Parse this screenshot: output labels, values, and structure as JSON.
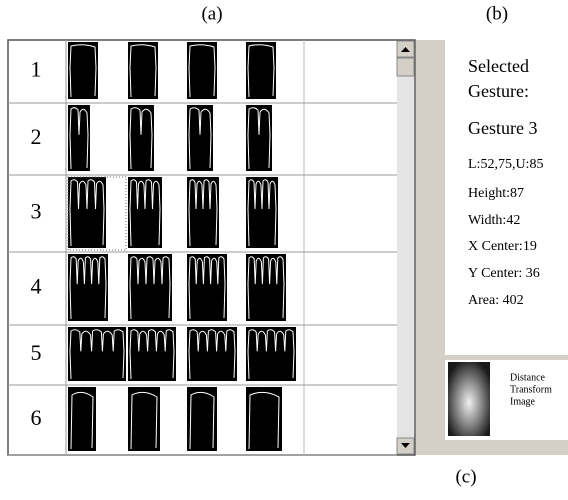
{
  "panel_labels": {
    "a": "(a)",
    "b": "(b)",
    "c": "(c)"
  },
  "gesture_table": {
    "rows": [
      "1",
      "2",
      "3",
      "4",
      "5",
      "6"
    ]
  },
  "info_panel": {
    "heading_line1": "Selected",
    "heading_line2": "Gesture:",
    "gesture_name": "Gesture 3",
    "fields": [
      "L:52,75,U:85",
      "Height:87",
      "Width:42",
      "X Center:19",
      "Y Center: 36",
      "Area: 402"
    ]
  },
  "distance_transform": {
    "caption_lines": [
      "Distance",
      "Transform",
      "Image"
    ]
  }
}
